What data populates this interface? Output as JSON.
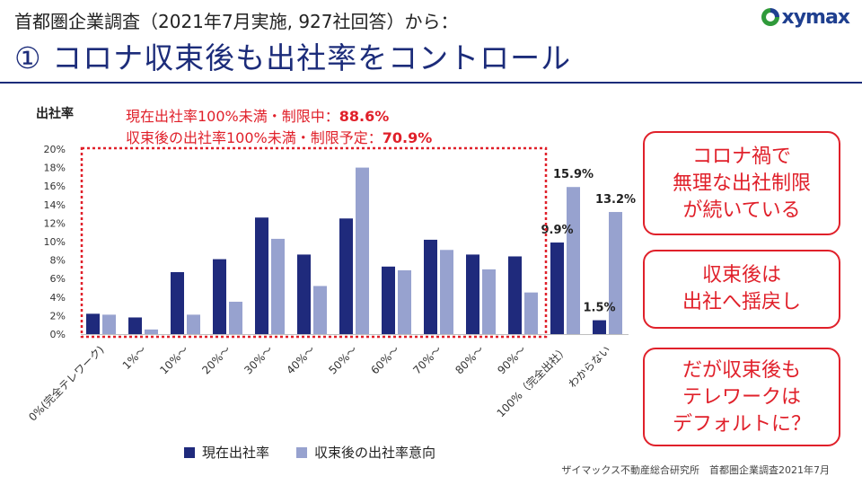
{
  "header": {
    "subtitle": "首都圏企業調査（2021年7月実施, 927社回答）から：",
    "title": "① コロナ収束後も出社率をコントロール",
    "logo_text": "xymax"
  },
  "notes": {
    "line1_text": "現在出社率100%未満・制限中：",
    "line1_value": "88.6%",
    "line2_text": "収束後の出社率100%未満・制限予定：",
    "line2_value": "70.9%"
  },
  "callouts": [
    {
      "lines": [
        "コロナ禍で",
        "無理な出社制限",
        "が続いている"
      ]
    },
    {
      "lines": [
        "収束後は",
        "出社へ揺戻し"
      ]
    },
    {
      "lines": [
        "だが収束後も",
        "テレワークは",
        "デフォルトに？"
      ]
    }
  ],
  "legend": {
    "current": "現在出社率",
    "future": "収束後の出社率意向"
  },
  "source": "ザイマックス不動産総合研究所　首都圏企業調査2021年7月",
  "colors": {
    "current": "#1f2a7c",
    "future": "#97a2cf",
    "accent": "#e0202a",
    "title": "#1c2c7a"
  },
  "chart_data": {
    "type": "bar",
    "ylabel": "出社率",
    "ylim": [
      0,
      20
    ],
    "yticks": [
      "0%",
      "2%",
      "4%",
      "6%",
      "8%",
      "10%",
      "12%",
      "14%",
      "16%",
      "18%",
      "20%"
    ],
    "categories": [
      "0%(完全テレワーク)",
      "1%～",
      "10%～",
      "20%～",
      "30%～",
      "40%～",
      "50%～",
      "60%～",
      "70%～",
      "80%～",
      "90%～",
      "100%（完全出社）",
      "わからない"
    ],
    "series": [
      {
        "name": "現在出社率",
        "values": [
          2.2,
          1.8,
          6.7,
          8.1,
          12.6,
          8.6,
          12.5,
          7.3,
          10.2,
          8.6,
          8.4,
          9.9,
          1.5
        ]
      },
      {
        "name": "収束後の出社率意向",
        "values": [
          2.1,
          0.5,
          2.1,
          3.5,
          10.3,
          5.2,
          18.0,
          6.9,
          9.1,
          7.0,
          4.5,
          15.9,
          13.2
        ]
      }
    ],
    "data_labels": [
      {
        "category": "100%（完全出社）",
        "series": "現在出社率",
        "text": "9.9%"
      },
      {
        "category": "100%（完全出社）",
        "series": "収束後の出社率意向",
        "text": "15.9%"
      },
      {
        "category": "わからない",
        "series": "現在出社率",
        "text": "1.5%"
      },
      {
        "category": "わからない",
        "series": "収束後の出社率意向",
        "text": "13.2%"
      }
    ]
  }
}
